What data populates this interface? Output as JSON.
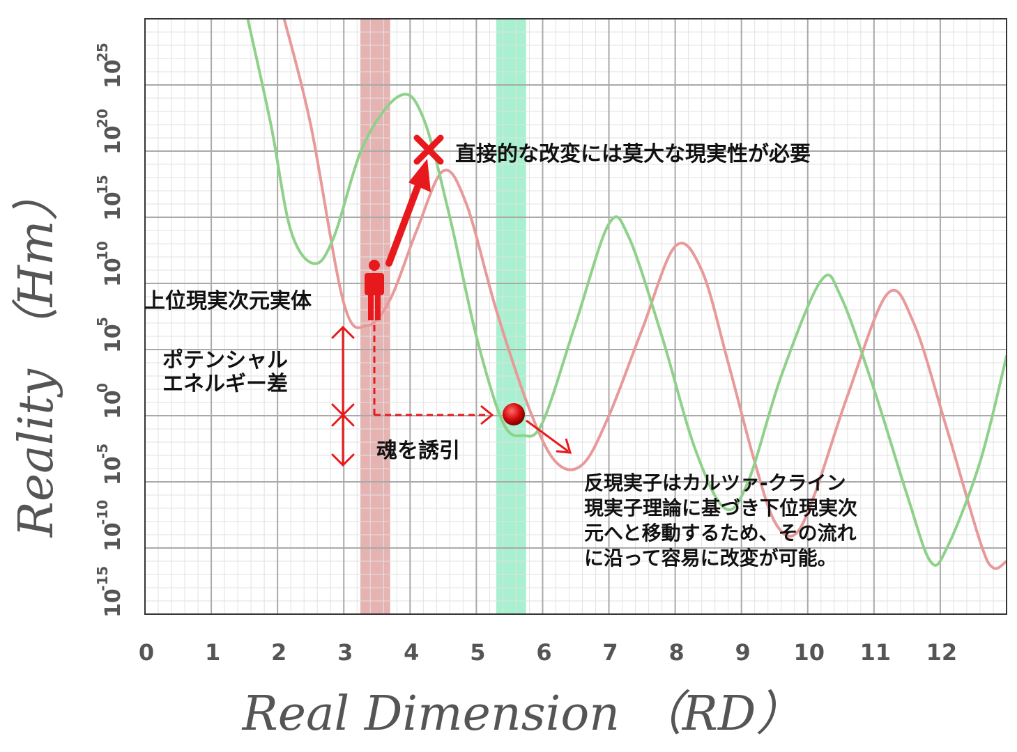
{
  "chart_data": {
    "type": "line",
    "title": "",
    "xlabel": "Real Dimension （RD）",
    "ylabel": "Reality （Hm）",
    "xlim": [
      0,
      13
    ],
    "ylim": [
      -15,
      30
    ],
    "y_scale": "log",
    "grid": true,
    "x_ticks": [
      "0",
      "1",
      "2",
      "3",
      "4",
      "5",
      "6",
      "7",
      "8",
      "9",
      "10",
      "11",
      "12"
    ],
    "y_ticks": [
      {
        "base": "10",
        "exp": "-15"
      },
      {
        "base": "10",
        "exp": "-10"
      },
      {
        "base": "10",
        "exp": "-5"
      },
      {
        "base": "10",
        "exp": "0"
      },
      {
        "base": "10",
        "exp": "5"
      },
      {
        "base": "10",
        "exp": "10"
      },
      {
        "base": "10",
        "exp": "15"
      },
      {
        "base": "10",
        "exp": "20"
      },
      {
        "base": "10",
        "exp": "25"
      }
    ],
    "series": [
      {
        "color": "#e8999a",
        "points": [
          [
            2.1,
            30
          ],
          [
            2.5,
            22
          ],
          [
            3.0,
            8.5
          ],
          [
            3.35,
            6.8
          ],
          [
            3.7,
            8.8
          ],
          [
            4.1,
            14
          ],
          [
            4.5,
            18.5
          ],
          [
            4.85,
            16
          ],
          [
            5.3,
            8
          ],
          [
            5.8,
            0.5
          ],
          [
            6.2,
            -3.5
          ],
          [
            6.6,
            -3.7
          ],
          [
            7.0,
            0
          ],
          [
            7.5,
            6.5
          ],
          [
            8.0,
            12.8
          ],
          [
            8.4,
            11
          ],
          [
            8.8,
            4
          ],
          [
            9.2,
            -3.5
          ],
          [
            9.5,
            -8
          ],
          [
            9.8,
            -9
          ],
          [
            10.1,
            -6
          ],
          [
            10.6,
            1.5
          ],
          [
            11.2,
            9.2
          ],
          [
            11.6,
            7
          ],
          [
            12.1,
            -1
          ],
          [
            12.6,
            -9.5
          ],
          [
            12.8,
            -11.5
          ],
          [
            13.0,
            -11
          ]
        ]
      },
      {
        "color": "#8fd18a",
        "points": [
          [
            1.55,
            30
          ],
          [
            1.9,
            22
          ],
          [
            2.2,
            14
          ],
          [
            2.55,
            11.5
          ],
          [
            2.85,
            13.5
          ],
          [
            3.3,
            20.5
          ],
          [
            3.85,
            24.2
          ],
          [
            4.2,
            22.5
          ],
          [
            4.6,
            15
          ],
          [
            5.0,
            6
          ],
          [
            5.4,
            -0.5
          ],
          [
            5.7,
            -1.5
          ],
          [
            6.0,
            -0.5
          ],
          [
            6.5,
            7
          ],
          [
            7.0,
            14.5
          ],
          [
            7.3,
            13.5
          ],
          [
            7.8,
            6
          ],
          [
            8.3,
            -2.5
          ],
          [
            8.75,
            -7
          ],
          [
            9.1,
            -5
          ],
          [
            9.6,
            3
          ],
          [
            10.2,
            10.2
          ],
          [
            10.5,
            9
          ],
          [
            11.0,
            2
          ],
          [
            11.5,
            -6
          ],
          [
            11.85,
            -11
          ],
          [
            12.1,
            -10
          ],
          [
            12.6,
            -3.5
          ],
          [
            13.0,
            4.5
          ]
        ]
      }
    ],
    "bands": [
      {
        "x": [
          3.25,
          3.7
        ],
        "color": "#e6b3b3"
      },
      {
        "x": [
          5.3,
          5.75
        ],
        "color": "#a8f0cf"
      }
    ]
  },
  "annotations": {
    "top": "直接的な改変には莫大な現実性が必要",
    "entity": "上位現実次元実体",
    "potential_line1": "ポテンシャル",
    "potential_line2": "エネルギー差",
    "soul": "魂を誘引",
    "anti_line1": "反現実子はカルツァ-クライン",
    "anti_line2": "現実子理論に基づき下位現実次",
    "anti_line3": "元へと移動するため、その流れ",
    "anti_line4": "に沿って容易に改変が可能。"
  },
  "colors": {
    "red": "#e8191c",
    "grid_major": "#a9a9a9",
    "grid_minor": "#e2e2e2",
    "frame": "#333333",
    "text": "#555555"
  }
}
